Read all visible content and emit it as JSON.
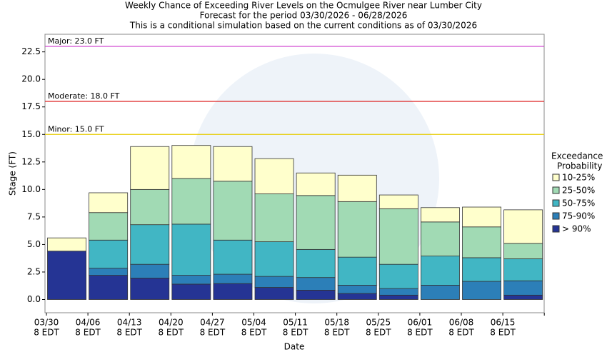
{
  "chart_data": {
    "type": "bar",
    "stacked": true,
    "title": [
      "Weekly Chance of Exceeding River Levels on the Ocmulgee River near Lumber City",
      "Forecast for the period 03/30/2026 - 06/28/2026",
      "This is a conditional simulation based on the current conditions as of 03/30/2026"
    ],
    "xlabel": "Date",
    "ylabel": "Stage (FT)",
    "categories": [
      "03/30",
      "04/06",
      "04/13",
      "04/20",
      "04/27",
      "05/04",
      "05/11",
      "05/18",
      "05/25",
      "06/01",
      "06/08",
      "06/15"
    ],
    "x_tick_sublabel": "8 EDT",
    "legend_title": [
      "Exceedance",
      "Probability"
    ],
    "series": [
      {
        "name": "> 90%",
        "color": "#253494",
        "values": [
          4.4,
          2.2,
          1.95,
          1.4,
          1.45,
          1.1,
          0.85,
          0.55,
          0.4,
          0.0,
          0.0,
          0.4
        ]
      },
      {
        "name": "75-90%",
        "color": "#2c7fb8",
        "values": [
          0,
          0.65,
          1.25,
          0.8,
          0.85,
          1.0,
          1.15,
          0.75,
          0.6,
          1.3,
          1.65,
          1.3
        ]
      },
      {
        "name": "50-75%",
        "color": "#41b6c4",
        "values": [
          0,
          2.55,
          3.6,
          4.65,
          3.1,
          3.15,
          2.55,
          2.55,
          2.2,
          2.65,
          2.15,
          2.0
        ]
      },
      {
        "name": "25-50%",
        "color": "#a1dab4",
        "values": [
          0,
          2.5,
          3.2,
          4.15,
          5.35,
          4.35,
          4.9,
          5.05,
          5.05,
          3.1,
          2.8,
          1.4
        ]
      },
      {
        "name": "10-25%",
        "color": "#ffffcc",
        "values": [
          1.2,
          1.8,
          3.9,
          3.0,
          3.15,
          3.2,
          2.05,
          2.4,
          1.25,
          1.3,
          1.8,
          3.05
        ]
      }
    ],
    "ylim": [
      -1.2,
      24.1
    ],
    "yticks": [
      {
        "value": 0,
        "label": "0.0"
      },
      2.5,
      {
        "value": 5,
        "label": "5.0"
      },
      7.5,
      {
        "value": 10,
        "label": "10.0"
      },
      12.5,
      {
        "value": 15,
        "label": "15.0"
      },
      17.5,
      {
        "value": 20,
        "label": "20.0"
      },
      22.5
    ],
    "thresholds": [
      {
        "label": "Major: 23.0 FT",
        "value": 23,
        "color": "#cc33cc"
      },
      {
        "label": "Moderate: 18.0 FT",
        "value": 18,
        "color": "#dd2222"
      },
      {
        "label": "Minor: 15.0 FT",
        "value": 15,
        "color": "#e6cc00"
      }
    ]
  }
}
